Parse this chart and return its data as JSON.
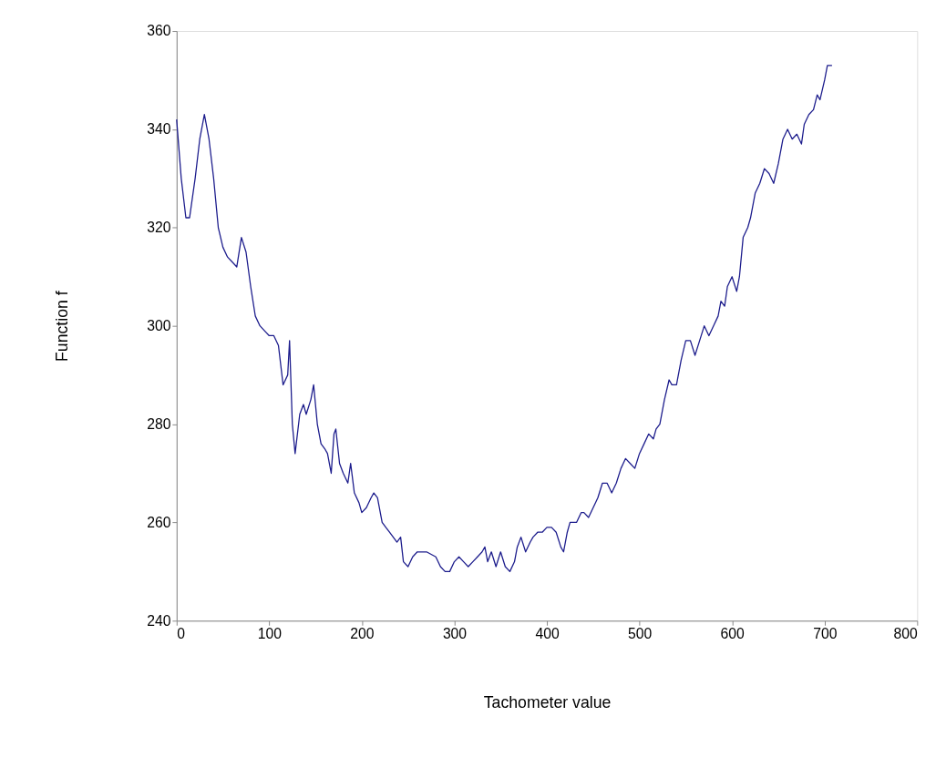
{
  "chart_data": {
    "type": "line",
    "xlabel": "Tachometer value",
    "ylabel": "Function  f",
    "x": [
      0,
      5,
      10,
      14,
      20,
      25,
      30,
      35,
      40,
      45,
      50,
      55,
      60,
      65,
      70,
      75,
      80,
      85,
      90,
      95,
      100,
      105,
      110,
      115,
      120,
      122,
      125,
      128,
      133,
      137,
      140,
      145,
      148,
      152,
      156,
      160,
      163,
      167,
      170,
      172,
      176,
      180,
      185,
      188,
      192,
      197,
      200,
      205,
      210,
      213,
      217,
      222,
      226,
      230,
      234,
      238,
      242,
      245,
      250,
      255,
      260,
      270,
      280,
      285,
      290,
      295,
      300,
      305,
      310,
      315,
      320,
      325,
      330,
      333,
      336,
      340,
      345,
      350,
      355,
      360,
      365,
      368,
      372,
      377,
      382,
      385,
      390,
      395,
      400,
      405,
      410,
      415,
      418,
      422,
      425,
      432,
      437,
      440,
      445,
      450,
      455,
      460,
      465,
      470,
      475,
      480,
      485,
      490,
      495,
      500,
      505,
      510,
      515,
      518,
      522,
      527,
      532,
      535,
      540,
      545,
      550,
      555,
      560,
      565,
      570,
      575,
      580,
      585,
      588,
      592,
      595,
      600,
      605,
      608,
      612,
      617,
      620,
      625,
      630,
      635,
      640,
      645,
      650,
      655,
      660,
      665,
      670,
      675,
      678,
      683,
      688,
      692,
      695,
      700,
      703,
      708
    ],
    "series": [
      {
        "color": "#1c1c8c",
        "values": [
          342,
          330,
          322,
          322,
          330,
          338,
          343,
          338,
          330,
          320,
          316,
          314,
          313,
          312,
          318,
          315,
          308,
          302,
          300,
          299,
          298,
          298,
          296,
          288,
          290,
          297,
          280,
          274,
          282,
          284,
          282,
          285,
          288,
          280,
          276,
          275,
          274,
          270,
          278,
          279,
          272,
          270,
          268,
          272,
          266,
          264,
          262,
          263,
          265,
          266,
          265,
          260,
          259,
          258,
          257,
          256,
          257,
          252,
          251,
          253,
          254,
          254,
          253,
          251,
          250,
          250,
          252,
          253,
          252,
          251,
          252,
          253,
          254,
          255,
          252,
          254,
          251,
          254,
          251,
          250,
          252,
          255,
          257,
          254,
          256,
          257,
          258,
          258,
          259,
          259,
          258,
          255,
          254,
          258,
          260,
          260,
          262,
          262,
          261,
          263,
          265,
          268,
          268,
          266,
          268,
          271,
          273,
          272,
          271,
          274,
          276,
          278,
          277,
          279,
          280,
          285,
          289,
          288,
          288,
          293,
          297,
          297,
          294,
          297,
          300,
          298,
          300,
          302,
          305,
          304,
          308,
          310,
          307,
          310,
          318,
          320,
          322,
          327,
          329,
          332,
          331,
          329,
          333,
          338,
          340,
          338,
          339,
          337,
          341,
          343,
          344,
          347,
          346,
          350,
          353,
          353
        ]
      }
    ],
    "xlim": [
      0,
      800
    ],
    "xticks": [
      0,
      100,
      200,
      300,
      400,
      500,
      600,
      700,
      800
    ],
    "ylim": [
      240,
      360
    ],
    "yticks": [
      240,
      260,
      280,
      300,
      320,
      340,
      360
    ],
    "grid": false,
    "line_style": "solid",
    "marker": "none"
  }
}
